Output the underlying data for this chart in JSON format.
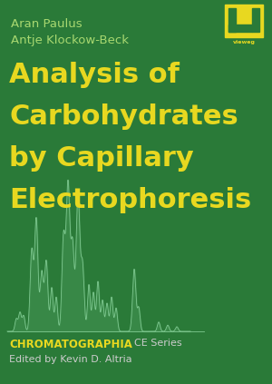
{
  "bg_color": "#2a7a38",
  "author1": "Aran Paulus",
  "author2": "Antje Klockow-Beck",
  "title_lines": [
    "Analysis of",
    "Carbohydrates",
    "by Capillary",
    "Electrophoresis"
  ],
  "author_color": "#a8d870",
  "title_color": "#e8d820",
  "chromatographia_color": "#e8d820",
  "ce_series_color": "#cccccc",
  "editor_text": "Edited by Kevin D. Altria",
  "editor_color": "#cccccc",
  "chromatographia_text": "CHROMATOGRAPHIA",
  "ce_text": "CE Series",
  "logo_bg": "#e8d820",
  "logo_fg": "#2a7a38",
  "vieweg_color": "#2a7a38",
  "peak_line_color": "#7ec890",
  "peak_fill_color": "#4a9a5a"
}
